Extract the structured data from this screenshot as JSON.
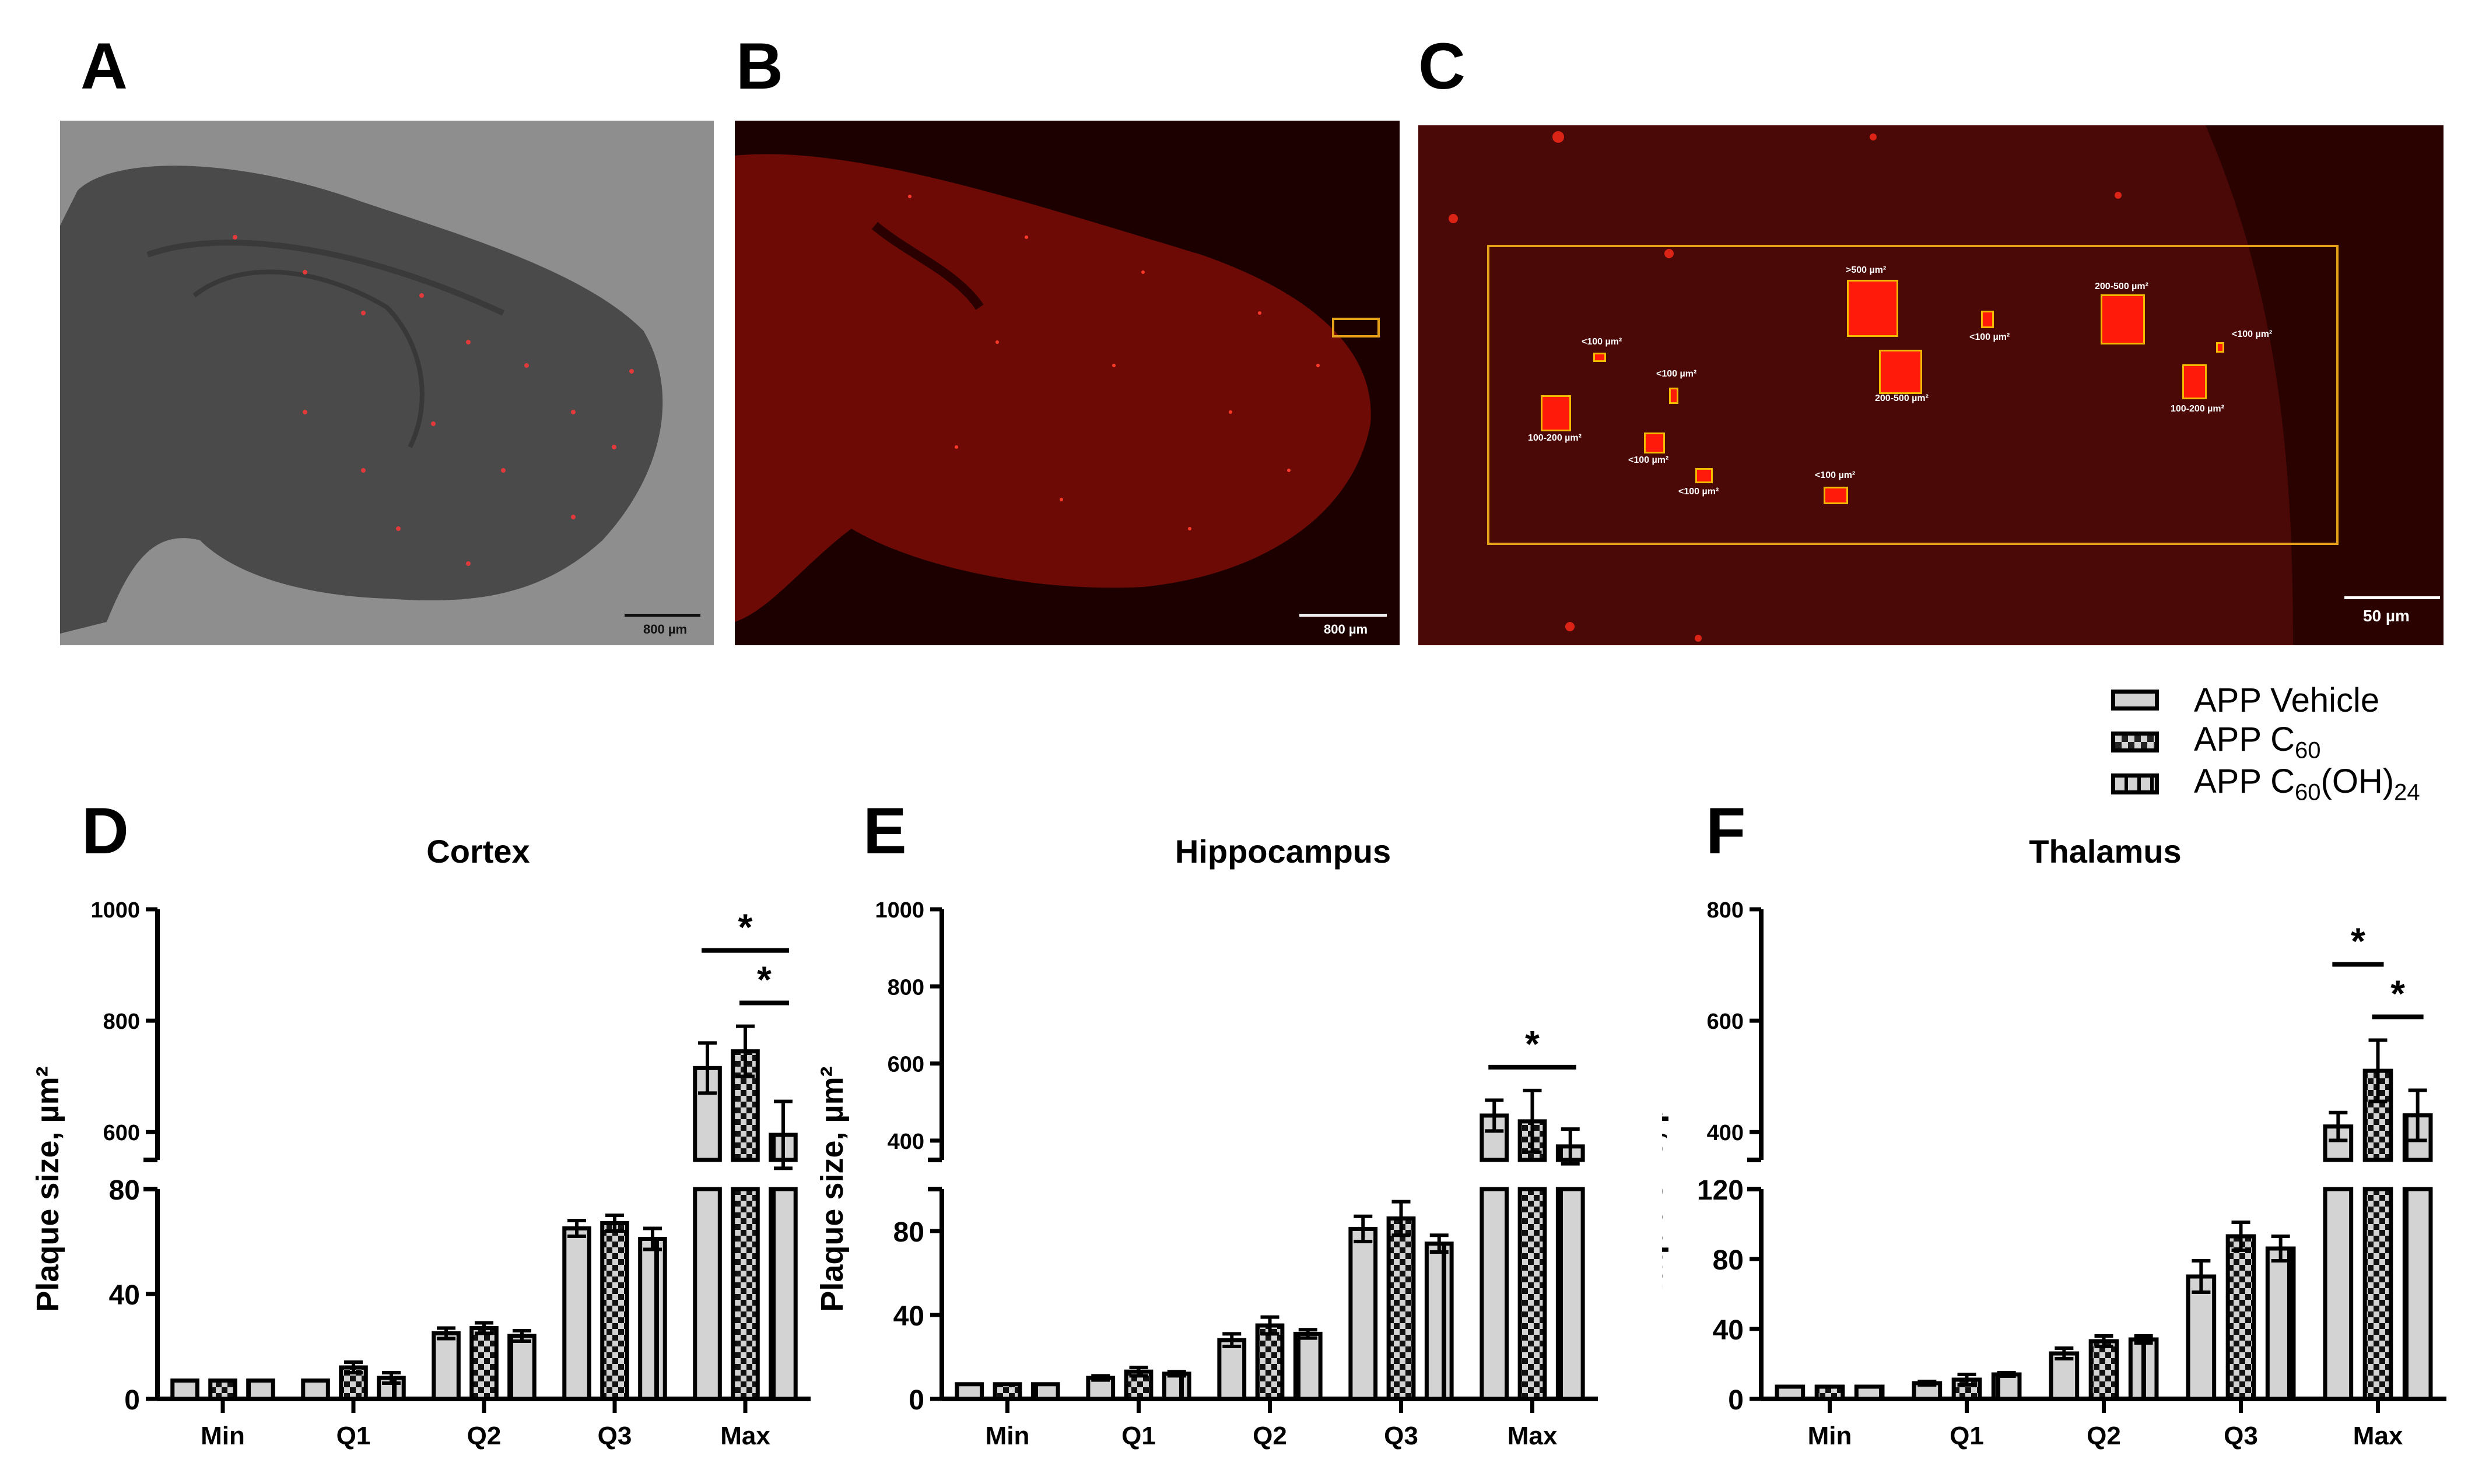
{
  "panels": {
    "A": {
      "label": "A",
      "scale_bar": "800 µm"
    },
    "B": {
      "label": "B",
      "scale_bar": "800 µm"
    },
    "C": {
      "label": "C",
      "scale_bar": "50 µm",
      "plaque_labels": [
        ">500 µm²",
        "200-500 µm²",
        "200-500 µm²",
        "<100 µm²",
        "<100 µm²",
        "<100 µm²",
        "<100 µm²",
        "<100 µm²",
        "<100 µm²",
        "<100 µm²",
        "100-200 µm²",
        "100-200 µm²"
      ]
    },
    "D": {
      "label": "D"
    },
    "E": {
      "label": "E"
    },
    "F": {
      "label": "F"
    }
  },
  "legend": {
    "items": [
      {
        "label": "APP Vehicle",
        "pattern": "solid"
      },
      {
        "label": "APP C60",
        "pattern": "checker"
      },
      {
        "label": "APP C60(OH)24",
        "pattern": "stripes"
      }
    ]
  },
  "colors": {
    "bar_fill": "#d3d3d3",
    "bar_stroke": "#000000",
    "roi": "#e6a11a",
    "plaque": "#ff1a0a"
  },
  "chart_data": [
    {
      "type": "bar",
      "title": "Cortex",
      "panel": "D",
      "xlabel": "",
      "ylabel": "Plaque size, µm²",
      "categories": [
        "Min",
        "Q1",
        "Q2",
        "Q3",
        "Max"
      ],
      "y_axis_broken": true,
      "lower_ticks": [
        0,
        40,
        80
      ],
      "upper_ticks": [
        600,
        800,
        1000
      ],
      "series": [
        {
          "name": "APP Vehicle",
          "values": [
            7,
            7,
            25,
            65,
            715
          ],
          "errors": [
            0,
            0,
            2,
            3,
            45
          ]
        },
        {
          "name": "APP C60",
          "values": [
            7,
            12,
            27,
            67,
            745
          ],
          "errors": [
            0,
            2,
            2,
            3,
            45
          ]
        },
        {
          "name": "APP C60(OH)24",
          "values": [
            7,
            8,
            24,
            61,
            595
          ],
          "errors": [
            0,
            2,
            2,
            4,
            60
          ]
        }
      ],
      "significance": [
        {
          "between": [
            "APP Vehicle",
            "APP C60(OH)24"
          ],
          "category": "Max",
          "label": "*"
        },
        {
          "between": [
            "APP C60",
            "APP C60(OH)24"
          ],
          "category": "Max",
          "label": "*"
        }
      ]
    },
    {
      "type": "bar",
      "title": "Hippocampus",
      "panel": "E",
      "xlabel": "",
      "ylabel": "Plaque size, µm²",
      "categories": [
        "Min",
        "Q1",
        "Q2",
        "Q3",
        "Max"
      ],
      "y_axis_broken": true,
      "lower_ticks": [
        0,
        40,
        80
      ],
      "upper_ticks": [
        400,
        600,
        800,
        1000
      ],
      "series": [
        {
          "name": "APP Vehicle",
          "values": [
            7,
            10,
            28,
            81,
            465
          ],
          "errors": [
            0,
            1,
            3,
            6,
            40
          ]
        },
        {
          "name": "APP C60",
          "values": [
            7,
            13,
            35,
            86,
            450
          ],
          "errors": [
            0,
            2,
            4,
            8,
            80
          ]
        },
        {
          "name": "APP C60(OH)24",
          "values": [
            7,
            12,
            31,
            74,
            385
          ],
          "errors": [
            0,
            1,
            2,
            4,
            45
          ]
        }
      ],
      "significance": [
        {
          "between": [
            "APP Vehicle",
            "APP C60(OH)24"
          ],
          "category": "Max",
          "label": "*"
        }
      ]
    },
    {
      "type": "bar",
      "title": "Thalamus",
      "panel": "F",
      "xlabel": "",
      "ylabel": "Plaque size, µm²",
      "categories": [
        "Min",
        "Q1",
        "Q2",
        "Q3",
        "Max"
      ],
      "y_axis_broken": true,
      "lower_ticks": [
        0,
        40,
        80,
        120
      ],
      "upper_ticks": [
        400,
        600,
        800
      ],
      "series": [
        {
          "name": "APP Vehicle",
          "values": [
            7,
            9,
            26,
            70,
            410
          ],
          "errors": [
            0,
            1,
            3,
            9,
            25
          ]
        },
        {
          "name": "APP C60",
          "values": [
            7,
            11,
            33,
            93,
            510
          ],
          "errors": [
            0,
            3,
            3,
            8,
            55
          ]
        },
        {
          "name": "APP C60(OH)24",
          "values": [
            7,
            14,
            34,
            86,
            430
          ],
          "errors": [
            0,
            1,
            2,
            7,
            45
          ]
        }
      ],
      "significance": [
        {
          "between": [
            "APP Vehicle",
            "APP C60"
          ],
          "category": "Max",
          "label": "*"
        },
        {
          "between": [
            "APP C60",
            "APP C60(OH)24"
          ],
          "category": "Max",
          "label": "*"
        }
      ]
    }
  ]
}
